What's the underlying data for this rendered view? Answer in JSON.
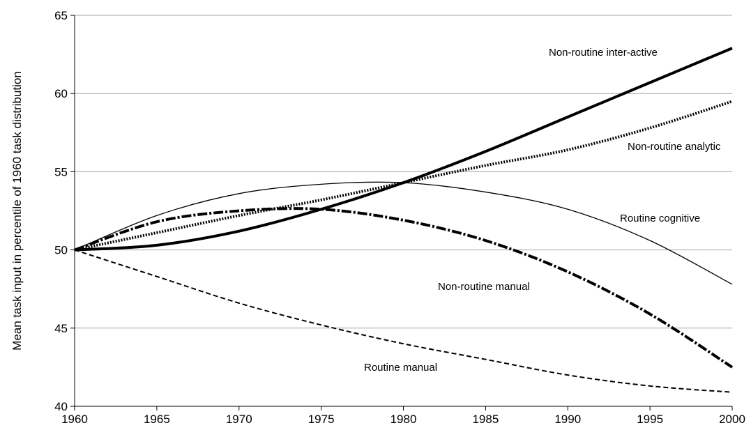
{
  "chart_data": {
    "type": "line",
    "title": "",
    "xlabel": "",
    "ylabel": "Mean task input in percentile of 1960 task distribution",
    "xlim": [
      1960,
      2000
    ],
    "ylim": [
      40,
      65
    ],
    "x_ticks": [
      "1960",
      "1965",
      "1970",
      "1975",
      "1980",
      "1985",
      "1990",
      "1995",
      "2000"
    ],
    "y_ticks": [
      "40",
      "45",
      "50",
      "55",
      "60",
      "65"
    ],
    "grid": "horizontal",
    "legend": "inline labels",
    "x": [
      1960,
      1965,
      1970,
      1975,
      1980,
      1985,
      1990,
      1995,
      2000
    ],
    "series": [
      {
        "name": "Non-routine inter-active",
        "style": "solid-thick",
        "values": [
          50.0,
          50.3,
          51.2,
          52.6,
          54.3,
          56.3,
          58.5,
          60.7,
          62.9
        ]
      },
      {
        "name": "Non-routine analytic",
        "style": "dotted",
        "values": [
          50.0,
          51.1,
          52.2,
          53.2,
          54.3,
          55.4,
          56.4,
          57.8,
          59.5
        ]
      },
      {
        "name": "Routine cognitive",
        "style": "solid-thin",
        "values": [
          50.0,
          52.2,
          53.6,
          54.2,
          54.3,
          53.7,
          52.6,
          50.6,
          47.8
        ]
      },
      {
        "name": "Non-routine manual",
        "style": "dash-dot",
        "values": [
          50.0,
          51.8,
          52.5,
          52.6,
          51.9,
          50.6,
          48.6,
          45.9,
          42.5
        ]
      },
      {
        "name": "Routine manual",
        "style": "dashed",
        "values": [
          50.0,
          48.3,
          46.6,
          45.2,
          44.0,
          43.0,
          42.0,
          41.3,
          40.9
        ]
      }
    ]
  }
}
